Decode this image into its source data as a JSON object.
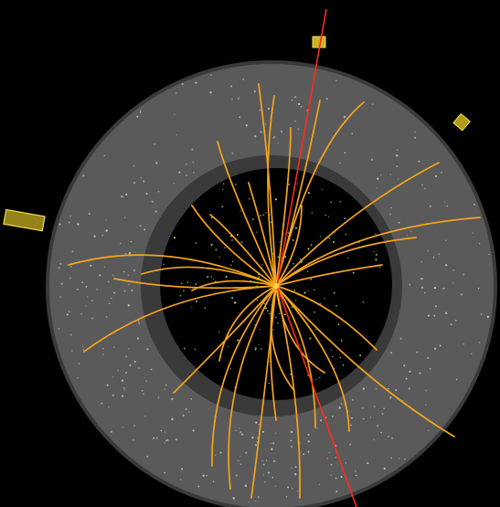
{
  "colors": {
    "background": "#000000",
    "outer_detector": "#5a5a5a",
    "outer_detector_edge": "#3c3c3c",
    "inner_ring": "#3a3a3a",
    "inner_core": "#000000",
    "tracks": "#f5a41c",
    "high_energy_track": "#ff2a1a",
    "calorimeter_deposits": "#c9b32a",
    "calorimeter_deposit_edge": "#f0dc4a",
    "hits": "#cfcfcf",
    "vertex_hits": "#d8e84a"
  },
  "scene": {
    "subject": "particle-collision-event-display",
    "track_count": 30,
    "calorimeter_deposit_count": 3
  }
}
